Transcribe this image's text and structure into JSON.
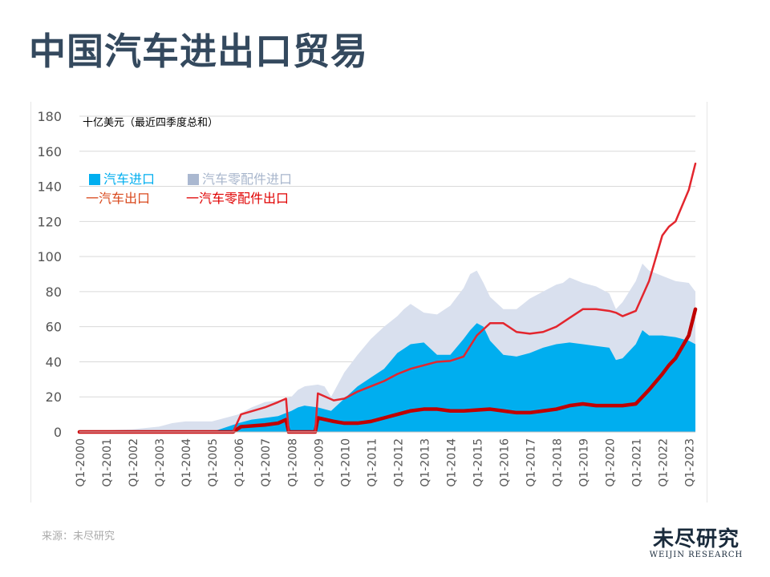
{
  "page": {
    "title": "中国汽车进出口贸易",
    "source": "来源：未尽研究",
    "logo_cn": "未尽研究",
    "logo_en": "WEIJIN RESEARCH"
  },
  "colors": {
    "vehicle_import": "#00aeef",
    "parts_import": "#d9e0ee",
    "vehicle_export": "#e3262e",
    "parts_export": "#c00000",
    "axis_text": "#555555",
    "grid": "#d9d9d9"
  },
  "chart_data": {
    "type": "area",
    "unit_label": "十亿美元（最近四季度总和）",
    "ylim": [
      0,
      180
    ],
    "yticks": [
      0,
      20,
      40,
      60,
      80,
      100,
      120,
      140,
      160,
      180
    ],
    "xlim": [
      2000,
      2023.25
    ],
    "xticks": [
      "Q1-2000",
      "Q1-2001",
      "Q1-2002",
      "Q1-2003",
      "Q1-2004",
      "Q1-2005",
      "Q1-2006",
      "Q1-2007",
      "Q1-2008",
      "Q1-2009",
      "Q1-2010",
      "Q1-2011",
      "Q1-2012",
      "Q1-2013",
      "Q1-2014",
      "Q1-2015",
      "Q1-2016",
      "Q1-2017",
      "Q1-2018",
      "Q1-2019",
      "Q1-2020",
      "Q1-2021",
      "Q1-2022",
      "Q1-2023"
    ],
    "legend": [
      {
        "key": "vehicle_import",
        "label": "汽车进口",
        "style": "box"
      },
      {
        "key": "parts_import",
        "label": "汽车零配件进口",
        "style": "box"
      },
      {
        "key": "vehicle_export",
        "label": "一汽车出口",
        "style": "line"
      },
      {
        "key": "parts_export",
        "label": "一汽车零配件出口",
        "style": "line"
      }
    ],
    "series": [
      {
        "name": "汽车零配件进口",
        "key": "parts_import",
        "kind": "stacked_total",
        "x": [
          2000,
          2001,
          2002,
          2003,
          2003.25,
          2003.5,
          2004,
          2005,
          2006,
          2006.5,
          2007,
          2007.5,
          2008,
          2008.25,
          2008.5,
          2009,
          2009.25,
          2009.5,
          2010,
          2010.5,
          2011,
          2011.5,
          2012,
          2012.25,
          2012.5,
          2013,
          2013.5,
          2014,
          2014.5,
          2014.75,
          2015,
          2015.25,
          2015.5,
          2016,
          2016.5,
          2017,
          2017.5,
          2018,
          2018.25,
          2018.5,
          2019,
          2019.5,
          2020,
          2020.25,
          2020.5,
          2021,
          2021.25,
          2021.5,
          2022,
          2022.5,
          2023,
          2023.25
        ],
        "values": [
          1,
          1,
          1.5,
          3,
          4,
          5,
          6,
          6,
          10,
          14,
          17,
          18,
          20,
          24,
          26,
          27,
          26,
          20,
          34,
          44,
          53,
          60,
          66,
          70,
          73,
          68,
          67,
          72,
          82,
          90,
          92,
          85,
          77,
          70,
          70,
          76,
          80,
          84,
          85,
          88,
          85,
          83,
          79,
          70,
          74,
          86,
          96,
          92,
          89,
          86,
          85,
          80
        ]
      },
      {
        "name": "汽车进口",
        "key": "vehicle_import",
        "kind": "bottom_area",
        "x": [
          2000,
          2001,
          2002,
          2003,
          2004,
          2005,
          2006,
          2006.5,
          2007,
          2007.5,
          2008,
          2008.25,
          2008.5,
          2009,
          2009.5,
          2010,
          2010.5,
          2011,
          2011.5,
          2012,
          2012.5,
          2013,
          2013.5,
          2014,
          2014.5,
          2014.75,
          2015,
          2015.25,
          2015.5,
          2016,
          2016.5,
          2017,
          2017.5,
          2018,
          2018.5,
          2019,
          2019.5,
          2020,
          2020.25,
          2020.5,
          2021,
          2021.25,
          2021.5,
          2022,
          2022.5,
          2023,
          2023.25
        ],
        "values": [
          0,
          0,
          0,
          0,
          0,
          0,
          5,
          7,
          8,
          9,
          12,
          14,
          15,
          14,
          12,
          19,
          26,
          31,
          36,
          45,
          50,
          51,
          44,
          44,
          53,
          58,
          62,
          60,
          52,
          44,
          43,
          45,
          48,
          50,
          51,
          50,
          49,
          48,
          41,
          42,
          50,
          58,
          55,
          55,
          54,
          52,
          50
        ]
      },
      {
        "name": "汽车出口",
        "key": "vehicle_export",
        "kind": "line",
        "x": [
          2000,
          2001,
          2005.8,
          2006.1,
          2007,
          2007.5,
          2007.8,
          2007.9,
          2008.9,
          2009.0,
          2009.6,
          2010,
          2010.5,
          2011,
          2011.5,
          2012,
          2012.5,
          2013,
          2013.5,
          2014,
          2014.5,
          2015,
          2015.5,
          2016,
          2016.5,
          2017,
          2017.5,
          2018,
          2018.5,
          2019,
          2019.5,
          2020,
          2020.25,
          2020.5,
          2021,
          2021.5,
          2022,
          2022.25,
          2022.5,
          2023,
          2023.25
        ],
        "values": [
          0,
          0,
          0,
          10,
          14,
          17,
          19,
          0,
          0,
          22,
          18,
          19,
          23,
          26,
          29,
          33,
          36,
          38,
          40,
          40.5,
          43,
          55,
          62,
          62,
          57,
          56,
          57,
          60,
          65,
          70,
          70,
          69,
          68,
          66,
          69,
          86,
          112,
          117,
          120,
          138,
          153
        ]
      },
      {
        "name": "汽车零配件出口",
        "key": "parts_export",
        "kind": "line",
        "x": [
          2000,
          2001,
          2005.8,
          2006.1,
          2007,
          2007.5,
          2007.8,
          2007.9,
          2008.9,
          2009.0,
          2009.6,
          2010,
          2010.5,
          2011,
          2011.5,
          2012,
          2012.5,
          2013,
          2013.5,
          2014,
          2014.5,
          2015,
          2015.5,
          2016,
          2016.5,
          2017,
          2017.5,
          2018,
          2018.5,
          2019,
          2019.5,
          2020,
          2020.25,
          2020.5,
          2021,
          2021.5,
          2022,
          2022.25,
          2022.5,
          2023,
          2023.25
        ],
        "values": [
          0,
          0,
          0,
          3,
          4,
          5,
          7,
          0,
          0,
          8,
          6,
          5,
          5,
          6,
          8,
          10,
          12,
          13,
          13,
          12,
          12,
          12.5,
          13,
          12,
          11,
          11,
          12,
          13,
          15,
          16,
          15,
          15,
          15,
          15,
          16,
          24,
          33,
          38,
          42,
          55,
          70
        ]
      }
    ]
  }
}
